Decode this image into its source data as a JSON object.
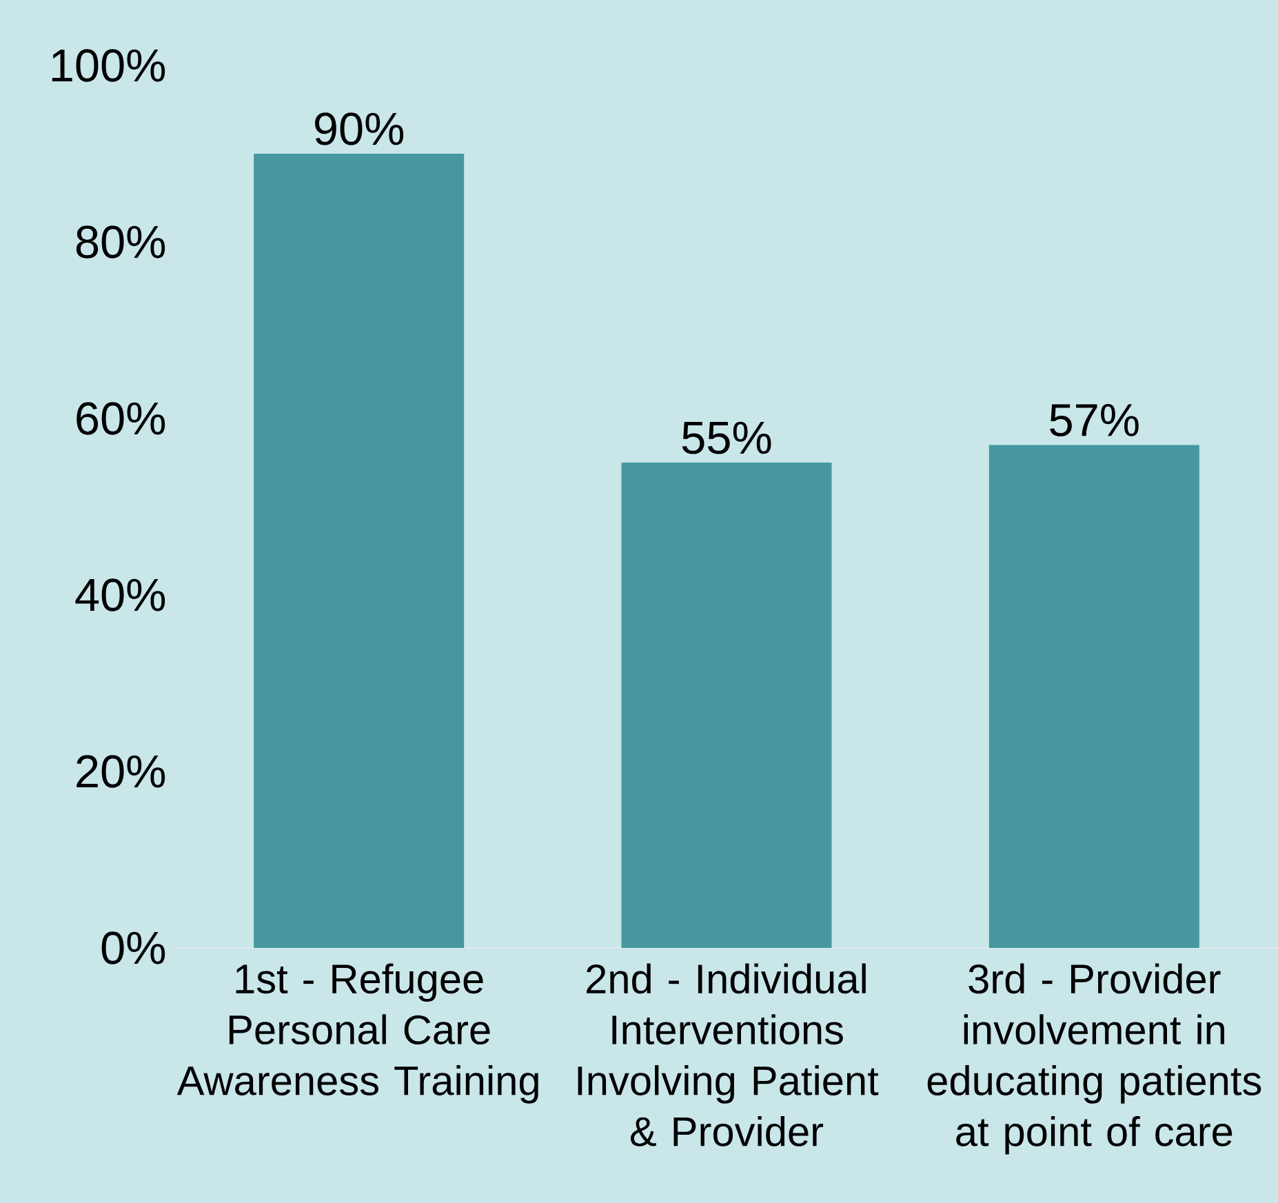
{
  "chart_data": {
    "type": "bar",
    "categories": [
      "1st - Refugee Personal Care Awareness Training",
      "2nd - Individual Interventions Involving Patient & Provider",
      "3rd - Provider involvement in educating patients at point of care"
    ],
    "values": [
      90,
      55,
      57
    ],
    "value_labels": [
      "90%",
      "55%",
      "57%"
    ],
    "color": "#4697a0",
    "ylim": [
      0,
      100
    ],
    "yticks": [
      {
        "value": 0,
        "label": "0%"
      },
      {
        "value": 20,
        "label": "20%"
      },
      {
        "value": 40,
        "label": "40%"
      },
      {
        "value": 60,
        "label": "60%"
      },
      {
        "value": 80,
        "label": "80%"
      },
      {
        "value": 100,
        "label": "100%"
      }
    ]
  }
}
